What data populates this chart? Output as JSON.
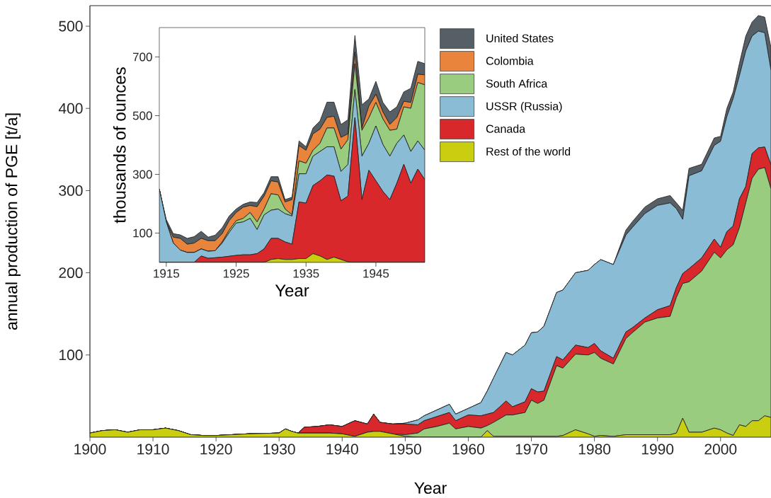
{
  "chart_data": [
    {
      "type": "area",
      "stacked": true,
      "xlabel": "Year",
      "ylabel": "annual production of PGE [t/a]",
      "x": [
        1900,
        1902,
        1904,
        1906,
        1908,
        1910,
        1912,
        1914,
        1916,
        1918,
        1920,
        1925,
        1930,
        1931,
        1932,
        1933,
        1934,
        1936,
        1938,
        1940,
        1942,
        1944,
        1945,
        1946,
        1948,
        1950,
        1952,
        1953,
        1955,
        1957,
        1958,
        1960,
        1962,
        1963,
        1964,
        1966,
        1967,
        1969,
        1970,
        1971,
        1972,
        1974,
        1975,
        1977,
        1979,
        1980,
        1981,
        1983,
        1985,
        1986,
        1988,
        1990,
        1992,
        1993,
        1994,
        1995,
        1997,
        1999,
        2000,
        2001,
        2002,
        2003,
        2004,
        2005,
        2006,
        2007,
        2008
      ],
      "series": [
        {
          "color": "#c9cf10",
          "values": [
            5,
            8,
            9,
            6,
            9,
            9,
            11,
            8,
            3,
            2,
            2,
            4,
            5,
            10,
            7,
            5,
            5,
            5,
            5,
            4,
            1,
            6,
            7,
            7,
            4,
            1,
            0,
            0,
            0,
            0,
            0,
            0,
            0,
            8,
            1,
            1,
            1,
            1,
            1,
            1,
            1,
            1,
            2,
            9,
            4,
            1,
            2,
            1,
            3,
            3,
            3,
            3,
            3,
            5,
            23,
            6,
            6,
            11,
            9,
            5,
            2,
            15,
            13,
            20,
            20,
            26,
            24
          ]
        },
        {
          "color": "#99cc7f",
          "values": [
            0,
            0,
            0,
            0,
            0,
            0,
            0,
            0,
            0,
            0,
            0,
            0,
            0,
            0,
            0,
            0,
            0,
            0,
            0,
            0,
            0,
            0,
            0,
            0,
            0,
            2,
            5,
            10,
            13,
            17,
            10,
            13,
            11,
            6,
            17,
            26,
            26,
            29,
            44,
            40,
            44,
            86,
            82,
            92,
            96,
            102,
            94,
            88,
            117,
            124,
            137,
            142,
            144,
            165,
            164,
            183,
            196,
            214,
            209,
            223,
            232,
            240,
            272,
            295,
            306,
            302,
            278
          ]
        },
        {
          "color": "#d9282b",
          "values": [
            0,
            0,
            0,
            0,
            0,
            0,
            0,
            0,
            0,
            0,
            0,
            0,
            0,
            0,
            0,
            0,
            7,
            8,
            10,
            9,
            19,
            10,
            21,
            11,
            12,
            13,
            10,
            10,
            12,
            13,
            10,
            14,
            15,
            14,
            12,
            17,
            10,
            13,
            14,
            14,
            11,
            11,
            10,
            11,
            9,
            11,
            9,
            7,
            8,
            6,
            5,
            10,
            13,
            12,
            12,
            16,
            16,
            16,
            13,
            22,
            23,
            35,
            20,
            30,
            26,
            25,
            29
          ]
        },
        {
          "color": "#8bbcd6",
          "values": [
            0,
            0,
            0,
            0,
            0,
            0,
            0,
            0,
            0,
            0,
            0,
            0,
            0,
            0,
            0,
            0,
            0,
            0,
            0,
            0,
            0,
            0,
            0,
            0,
            0,
            1,
            6,
            6,
            8,
            10,
            8,
            8,
            16,
            28,
            42,
            59,
            63,
            69,
            68,
            73,
            79,
            78,
            85,
            88,
            94,
            96,
            111,
            114,
            118,
            122,
            127,
            127,
            125,
            96,
            66,
            113,
            106,
            114,
            129,
            140,
            155,
            150,
            165,
            143,
            142,
            139,
            115
          ]
        },
        {
          "color": "#565f66",
          "values": [
            0,
            0,
            0,
            0,
            0,
            0,
            0,
            0,
            0,
            0,
            0,
            0,
            0,
            0,
            0,
            0,
            0,
            0,
            0,
            0,
            0,
            0,
            0,
            0,
            0,
            0,
            0,
            0,
            0,
            0,
            0,
            0,
            0,
            0,
            0,
            0,
            0,
            0,
            0,
            0,
            0,
            0,
            0,
            0,
            0,
            0,
            0,
            0,
            6,
            7,
            8,
            8,
            9,
            7,
            11,
            9,
            8,
            9,
            6,
            10,
            8,
            15,
            18,
            17,
            19,
            19,
            28
          ]
        }
      ],
      "xlim": [
        1900,
        2008
      ],
      "ylim": [
        0,
        525
      ],
      "xticks": [
        1900,
        1910,
        1920,
        1930,
        1940,
        1950,
        1960,
        1970,
        1980,
        1990,
        2000
      ],
      "yticks": [
        100,
        200,
        300,
        400,
        500
      ]
    },
    {
      "type": "area",
      "stacked": true,
      "xlabel": "Year",
      "ylabel": "thousands of ounces",
      "legend": "right",
      "x": [
        1914,
        1915,
        1916,
        1917,
        1918,
        1919,
        1920,
        1921,
        1922,
        1923,
        1924,
        1925,
        1926,
        1927,
        1928,
        1929,
        1930,
        1931,
        1932,
        1933,
        1934,
        1935,
        1936,
        1937,
        1938,
        1939,
        1940,
        1941,
        1942,
        1943,
        1944,
        1945,
        1946,
        1947,
        1948,
        1949,
        1950,
        1951,
        1952
      ],
      "series": [
        {
          "name": "Rest of the world",
          "color": "#c9cf10",
          "values": [
            0,
            0,
            0,
            0,
            0,
            0,
            0,
            0,
            0,
            0,
            0,
            0,
            0,
            0,
            0,
            0,
            10,
            13,
            10,
            10,
            13,
            13,
            30,
            22,
            10,
            18,
            10,
            2,
            0,
            0,
            0,
            0,
            0,
            0,
            0,
            0,
            0,
            0,
            0
          ]
        },
        {
          "name": "Canada",
          "color": "#d9282b",
          "values": [
            0,
            0,
            0,
            0,
            0,
            0,
            22,
            14,
            16,
            18,
            21,
            24,
            26,
            26,
            30,
            46,
            72,
            69,
            60,
            52,
            193,
            189,
            232,
            256,
            288,
            276,
            200,
            224,
            493,
            214,
            314,
            278,
            242,
            214,
            270,
            334,
            270,
            318,
            282
          ]
        },
        {
          "name": "USSR (Russia)",
          "color": "#8bbcd6",
          "values": [
            250,
            138,
            66,
            42,
            34,
            34,
            24,
            24,
            24,
            48,
            81,
            110,
            112,
            124,
            82,
            116,
            96,
            100,
            96,
            96,
            96,
            100,
            100,
            100,
            96,
            100,
            100,
            108,
            96,
            148,
            92,
            187,
            160,
            148,
            136,
            100,
            108,
            96,
            100
          ]
        },
        {
          "name": "South Africa",
          "color": "#99cc7f",
          "values": [
            0,
            0,
            0,
            0,
            0,
            0,
            0,
            0,
            0,
            4,
            8,
            8,
            12,
            20,
            26,
            20,
            56,
            48,
            16,
            4,
            44,
            36,
            20,
            28,
            64,
            64,
            76,
            84,
            88,
            88,
            87,
            80,
            87,
            88,
            48,
            96,
            147,
            199,
            223
          ]
        },
        {
          "name": "Colombia",
          "color": "#e8843c",
          "values": [
            0,
            0,
            20,
            40,
            28,
            32,
            36,
            36,
            34,
            28,
            32,
            28,
            38,
            24,
            52,
            44,
            44,
            44,
            24,
            52,
            52,
            44,
            56,
            48,
            36,
            40,
            40,
            20,
            40,
            8,
            40,
            28,
            24,
            20,
            40,
            19,
            20,
            28,
            34
          ]
        },
        {
          "name": "United States",
          "color": "#565f66",
          "values": [
            0,
            8,
            12,
            12,
            20,
            22,
            24,
            12,
            19,
            20,
            16,
            12,
            10,
            12,
            14,
            12,
            14,
            18,
            8,
            8,
            16,
            12,
            20,
            28,
            52,
            48,
            44,
            48,
            56,
            79,
            24,
            44,
            32,
            43,
            36,
            32,
            48,
            44,
            38
          ]
        }
      ],
      "xlim": [
        1914,
        1952
      ],
      "ylim": [
        0,
        800
      ],
      "xticks": [
        1915,
        1925,
        1935,
        1945
      ],
      "yticks": [
        100,
        300,
        500,
        700
      ]
    }
  ]
}
